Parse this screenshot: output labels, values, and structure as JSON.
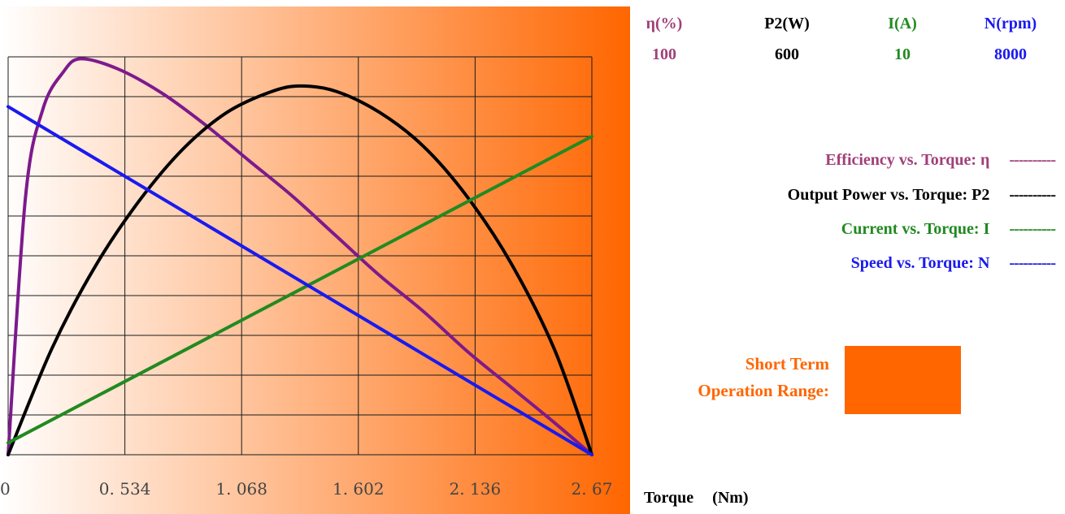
{
  "chart_data": {
    "type": "line",
    "x_axis": {
      "title": "Torque",
      "unit": "(Nm)",
      "min": 0,
      "max": 2.67,
      "tick_labels": [
        "0",
        "0. 534",
        "1. 068",
        "1. 602",
        "2. 136",
        "2. 67"
      ]
    },
    "y_axes": [
      {
        "label": "η(%)",
        "max_label": "100",
        "max": 100,
        "color": "#a0407a"
      },
      {
        "label": "P2(W)",
        "max_label": "600",
        "max": 600,
        "color": "#000000"
      },
      {
        "label": "I(A)",
        "max_label": "10",
        "max": 10,
        "color": "#218a21"
      },
      {
        "label": "N(rpm)",
        "max_label": "8000",
        "max": 8000,
        "color": "#1a1aee"
      }
    ],
    "grid": {
      "vertical_divisions": 5,
      "horizontal_divisions": 10
    },
    "series": [
      {
        "key": "efficiency",
        "axis": 0,
        "color": "#7d1a8c",
        "x": [
          0,
          0.08,
          0.16,
          0.25,
          0.33,
          0.5,
          0.7,
          0.9,
          1.1,
          1.3,
          1.5,
          1.7,
          1.9,
          2.1,
          2.3,
          2.5,
          2.67
        ],
        "y": [
          0,
          65,
          87,
          96,
          99.5,
          97,
          91,
          83,
          74,
          65,
          55,
          45,
          36,
          26,
          17,
          8,
          0
        ]
      },
      {
        "key": "output_power",
        "axis": 1,
        "color": "#000000",
        "x": [
          0,
          0.2,
          0.4,
          0.6,
          0.8,
          1.0,
          1.2,
          1.335,
          1.5,
          1.7,
          1.9,
          2.1,
          2.3,
          2.5,
          2.67
        ],
        "y": [
          0,
          160,
          285,
          383,
          461,
          516,
          547,
          556,
          548,
          516,
          465,
          389,
          289,
          158,
          0
        ]
      },
      {
        "key": "current",
        "axis": 2,
        "color": "#218a21",
        "x": [
          0,
          2.67
        ],
        "y": [
          0.3,
          8
        ]
      },
      {
        "key": "speed",
        "axis": 3,
        "color": "#1a1aee",
        "x": [
          0,
          2.67
        ],
        "y": [
          7000,
          0
        ]
      }
    ],
    "legend": [
      {
        "label": "Efficiency vs. Torque: η",
        "dash": "----------",
        "color": "#a0407a"
      },
      {
        "label": "Output Power vs. Torque: P2",
        "dash": "----------",
        "color": "#000000"
      },
      {
        "label": "Current vs. Torque: I",
        "dash": "----------",
        "color": "#218a21"
      },
      {
        "label": "Speed vs. Torque: N",
        "dash": "----------",
        "color": "#1a1aee"
      }
    ],
    "short_term": {
      "line1": "Short Term",
      "line2": "Operation Range:",
      "color": "#ff6600"
    },
    "background_gradient": [
      "#ffffff",
      "#ff6600"
    ]
  }
}
